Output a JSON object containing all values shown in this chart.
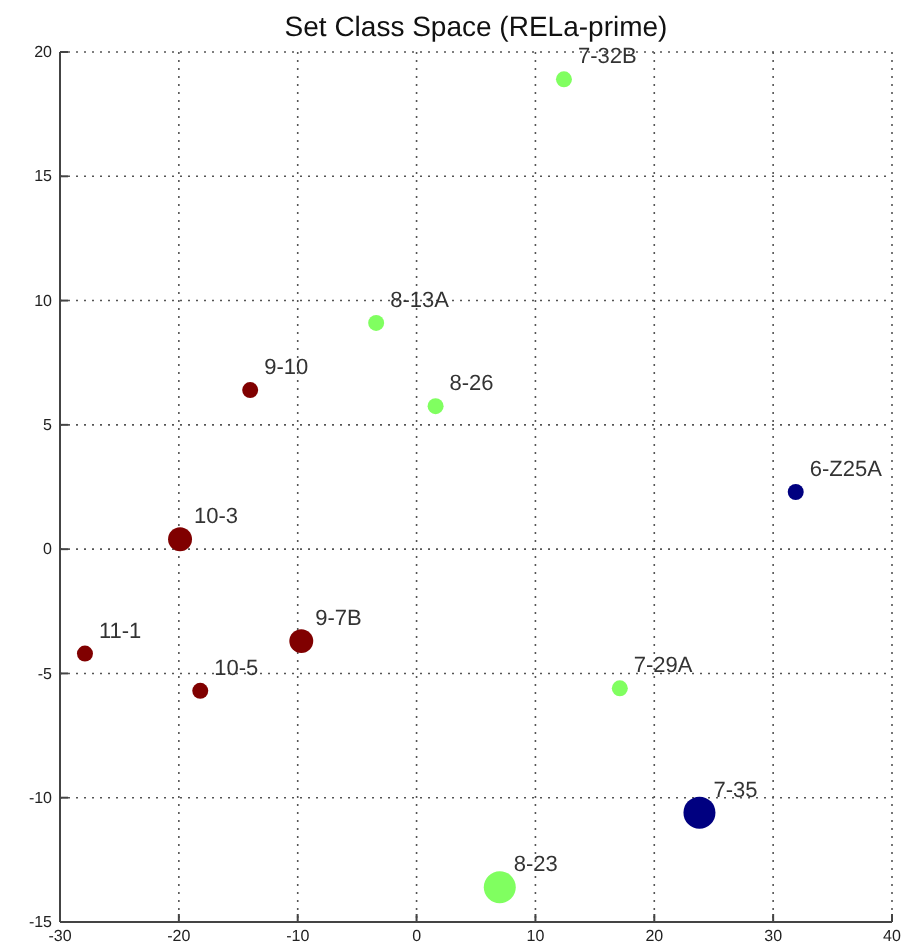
{
  "chart_data": {
    "type": "bubble",
    "title": "Set Class Space (RELa-prime)",
    "xlim": [
      -30,
      40
    ],
    "xticks": [
      -30,
      -20,
      -10,
      0,
      10,
      20,
      30,
      40
    ],
    "ylim": [
      -15,
      20
    ],
    "yticks": [
      -15,
      -10,
      -5,
      0,
      5,
      10,
      15,
      20
    ],
    "grid": true,
    "line_style": "dotted",
    "series": [
      {
        "color": "#800000",
        "x": [
          -14.0,
          -19.9,
          -27.9,
          -9.7,
          -18.2
        ],
        "values": [
          6.4,
          0.4,
          -4.2,
          -3.7,
          -5.7
        ],
        "sizes": [
          0.25,
          0.56,
          0.25,
          0.56,
          0.25
        ]
      },
      {
        "color": "#80ff60",
        "x": [
          12.4,
          -3.4,
          1.6,
          17.1,
          7.0
        ],
        "values": [
          18.9,
          9.1,
          5.75,
          -5.6,
          -13.6
        ],
        "sizes": [
          0.25,
          0.25,
          0.25,
          0.25,
          1
        ]
      },
      {
        "color": "#000080",
        "x": [
          31.9,
          23.8
        ],
        "values": [
          2.3,
          -10.6
        ],
        "sizes": [
          0.25,
          1
        ]
      }
    ],
    "annotations": [
      {
        "text": "9-10",
        "x": -14.0,
        "y": 6.4
      },
      {
        "text": "10-3",
        "x": -19.9,
        "y": 0.4
      },
      {
        "text": "11-1",
        "x": -27.9,
        "y": -4.2
      },
      {
        "text": "9-7B",
        "x": -9.7,
        "y": -3.7
      },
      {
        "text": "10-5",
        "x": -18.2,
        "y": -5.7
      },
      {
        "text": "7-32B",
        "x": 12.4,
        "y": 18.9
      },
      {
        "text": "8-13A",
        "x": -3.4,
        "y": 9.1
      },
      {
        "text": "8-26",
        "x": 1.6,
        "y": 5.75
      },
      {
        "text": "7-29A",
        "x": 17.1,
        "y": -5.6
      },
      {
        "text": "8-23",
        "x": 7.0,
        "y": -13.6
      },
      {
        "text": "6-Z25A",
        "x": 31.9,
        "y": 2.3
      },
      {
        "text": "7-35",
        "x": 23.8,
        "y": -10.6
      }
    ]
  }
}
